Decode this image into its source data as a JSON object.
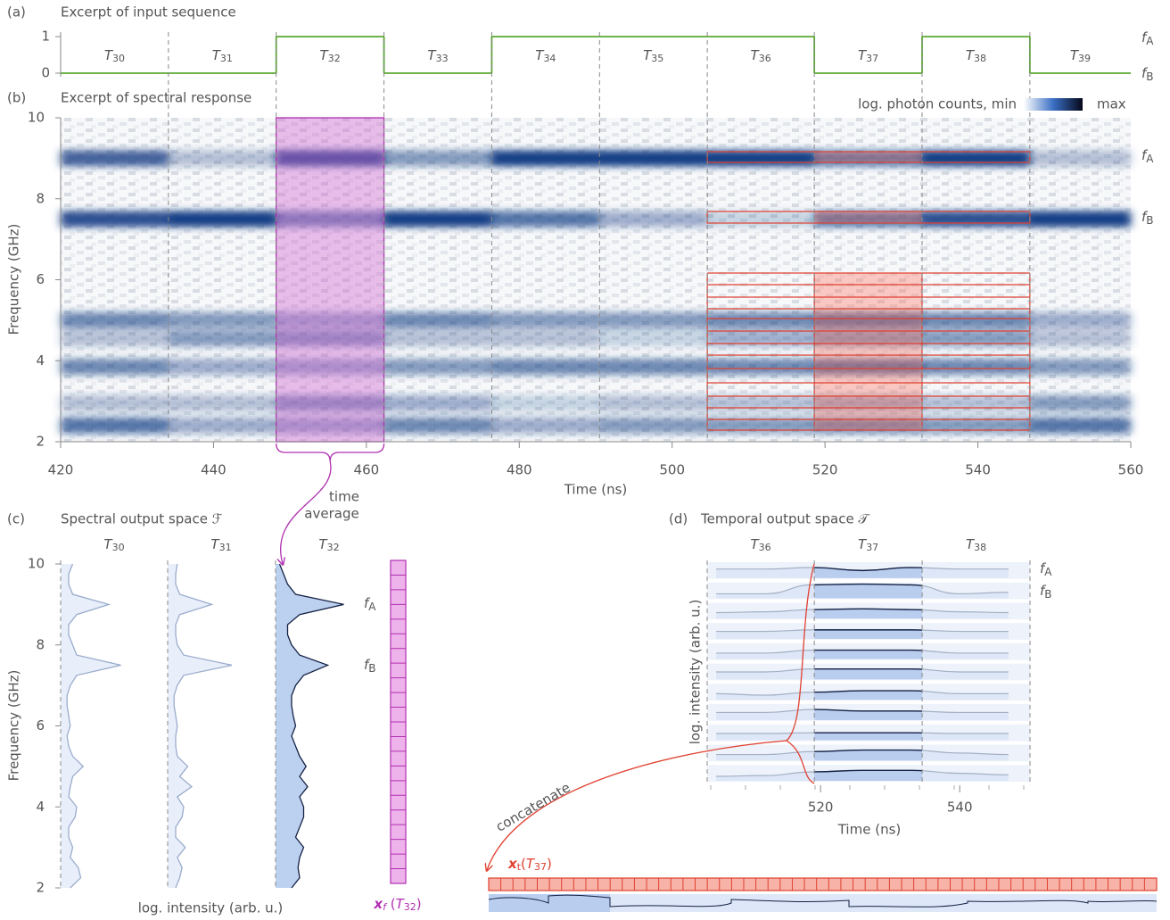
{
  "chart_data": [
    {
      "type": "step",
      "panel": "(a)",
      "title": "Excerpt of input sequence",
      "period_symbol": "T",
      "period_indices": [
        "30",
        "31",
        "32",
        "33",
        "34",
        "35",
        "36",
        "37",
        "38",
        "39"
      ],
      "period_edges": [
        420,
        434.1,
        448.2,
        462.3,
        476.4,
        490.5,
        504.6,
        518.6,
        532.7,
        546.8,
        560
      ],
      "values": [
        0,
        0,
        1,
        0,
        1,
        1,
        1,
        0,
        1,
        0
      ],
      "color": "#5aa832",
      "xlim": [
        420,
        560
      ],
      "ylim": [
        0,
        1
      ],
      "yticks": [
        0,
        1
      ],
      "level_symbol": "f",
      "level_names": [
        "A",
        "B"
      ]
    },
    {
      "type": "heatmap",
      "panel": "(b)",
      "title": "Excerpt of spectral response",
      "xlabel": "Time (ns)",
      "ylabel": "Frequency (GHz)",
      "xlim": [
        420,
        560
      ],
      "xticks": [
        420,
        440,
        460,
        480,
        500,
        520,
        540,
        560
      ],
      "ylim": [
        2,
        10
      ],
      "yticks": [
        2,
        4,
        6,
        8,
        10
      ],
      "colorbar_label": "log. photon counts, min",
      "colorbar_max": "max",
      "color": "#163f86",
      "band_frequencies": [
        9.0,
        7.5,
        5.0,
        4.55,
        3.85,
        2.95,
        2.4
      ],
      "intensities": [
        [
          0.8,
          0.3,
          0.9,
          0.5,
          1,
          1,
          1,
          0.7,
          1,
          0.3
        ],
        [
          0.9,
          1,
          0.6,
          1,
          0.7,
          0.4,
          0.2,
          0.7,
          0.9,
          1
        ],
        [
          0.6,
          0.5,
          0.4,
          0.6,
          0.5,
          0.5,
          0.6,
          0.7,
          0.6,
          0.4
        ],
        [
          0.3,
          0.5,
          0.5,
          0.3,
          0.3,
          0.2,
          0.4,
          0.5,
          0.5,
          0.3
        ],
        [
          0.6,
          0.4,
          0.4,
          0.5,
          0.6,
          0.6,
          0.6,
          0.7,
          0.6,
          0.5
        ],
        [
          0.3,
          0.3,
          0.5,
          0.4,
          0.2,
          0.3,
          0.3,
          0.4,
          0.3,
          0.5
        ],
        [
          0.7,
          0.4,
          0.4,
          0.6,
          0.4,
          0.5,
          0.5,
          0.6,
          0.5,
          0.7
        ]
      ],
      "annotation": [
        "time",
        "average"
      ]
    },
    {
      "type": "profile",
      "panel": "(c)",
      "title": "Spectral output space ℱ",
      "ylabel": "Frequency (GHz)",
      "xlabel": "log. intensity (arb. u.)",
      "ylim": [
        2,
        10
      ],
      "yticks": [
        2,
        4,
        6,
        8,
        10
      ],
      "frequencies": [
        2,
        2.25,
        2.5,
        2.75,
        3,
        3.25,
        3.5,
        3.75,
        4,
        4.25,
        4.5,
        4.75,
        5,
        5.25,
        5.5,
        5.75,
        6,
        6.25,
        6.5,
        6.75,
        7,
        7.25,
        7.5,
        7.75,
        8,
        8.25,
        8.5,
        8.75,
        9,
        9.25,
        9.5,
        9.75,
        10
      ],
      "series": [
        {
          "name": "30",
          "color": "#e8effa",
          "values": [
            0.12,
            0.25,
            0.22,
            0.12,
            0.15,
            0.1,
            0.1,
            0.18,
            0.2,
            0.1,
            0.12,
            0.15,
            0.28,
            0.15,
            0.1,
            0.08,
            0.12,
            0.1,
            0.08,
            0.08,
            0.12,
            0.2,
            0.75,
            0.2,
            0.15,
            0.1,
            0.1,
            0.2,
            0.6,
            0.15,
            0.1,
            0.1,
            0.15
          ]
        },
        {
          "name": "31",
          "color": "#e8effa",
          "values": [
            0.1,
            0.15,
            0.18,
            0.12,
            0.22,
            0.1,
            0.1,
            0.18,
            0.2,
            0.12,
            0.3,
            0.15,
            0.25,
            0.12,
            0.1,
            0.1,
            0.12,
            0.1,
            0.08,
            0.08,
            0.12,
            0.2,
            0.8,
            0.2,
            0.12,
            0.1,
            0.1,
            0.15,
            0.55,
            0.15,
            0.1,
            0.1,
            0.12
          ]
        },
        {
          "name": "32",
          "color": "#bcd0f0",
          "values": [
            0.2,
            0.3,
            0.28,
            0.3,
            0.35,
            0.25,
            0.3,
            0.35,
            0.35,
            0.3,
            0.4,
            0.3,
            0.38,
            0.3,
            0.25,
            0.2,
            0.25,
            0.22,
            0.2,
            0.2,
            0.25,
            0.35,
            0.65,
            0.3,
            0.2,
            0.15,
            0.15,
            0.3,
            0.85,
            0.25,
            0.15,
            0.1,
            0.05
          ]
        }
      ],
      "period_symbol": "T",
      "vector_label_parts": [
        "x",
        "f",
        " (",
        "T",
        "32",
        ")"
      ]
    },
    {
      "type": "traces",
      "panel": "(d)",
      "title": "Temporal output space 𝒯",
      "ylabel": "log. intensity (arb. u.)",
      "xlabel": "Time (ns)",
      "xlim": [
        503.7,
        550.1
      ],
      "xticks": [
        520,
        540
      ],
      "period_symbol": "T",
      "period_indices": [
        "36",
        "37",
        "38"
      ],
      "period_edges": [
        503.7,
        519.1,
        534.6,
        550.1
      ],
      "times": [
        505,
        512,
        519,
        526,
        533,
        540,
        547
      ],
      "series": [
        {
          "values": [
            0.6,
            0.6,
            0.7,
            0.5,
            0.7,
            0.6,
            0.6
          ]
        },
        {
          "values": [
            0.3,
            0.3,
            0.9,
            0.95,
            0.9,
            0.3,
            0.4
          ]
        },
        {
          "values": [
            0.4,
            0.45,
            0.6,
            0.65,
            0.6,
            0.45,
            0.4
          ]
        },
        {
          "values": [
            0.5,
            0.5,
            0.6,
            0.6,
            0.6,
            0.5,
            0.5
          ]
        },
        {
          "values": [
            0.4,
            0.4,
            0.6,
            0.6,
            0.6,
            0.4,
            0.4
          ]
        },
        {
          "values": [
            0.5,
            0.5,
            0.7,
            0.7,
            0.7,
            0.5,
            0.5
          ]
        },
        {
          "values": [
            0.4,
            0.3,
            0.5,
            0.6,
            0.6,
            0.4,
            0.4
          ]
        },
        {
          "values": [
            0.5,
            0.5,
            0.7,
            0.6,
            0.6,
            0.5,
            0.5
          ]
        },
        {
          "values": [
            0.45,
            0.45,
            0.5,
            0.5,
            0.5,
            0.45,
            0.45
          ]
        },
        {
          "values": [
            0.4,
            0.4,
            0.6,
            0.7,
            0.7,
            0.5,
            0.4
          ]
        },
        {
          "values": [
            0.3,
            0.35,
            0.6,
            0.7,
            0.7,
            0.5,
            0.4
          ]
        }
      ],
      "annotation": "concatenate",
      "vector_label_parts": [
        "x",
        "t",
        "(",
        "T",
        "37",
        ")"
      ]
    }
  ]
}
